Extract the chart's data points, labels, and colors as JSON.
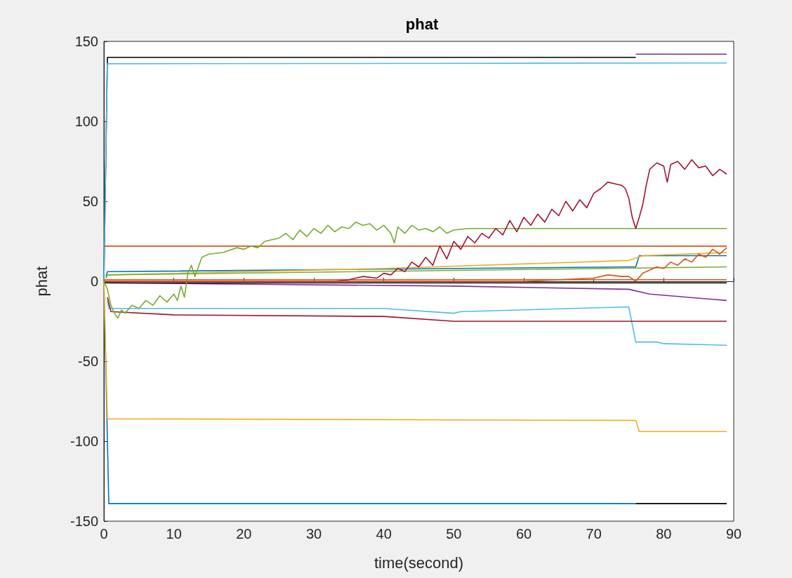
{
  "chart_data": {
    "type": "line",
    "title": "phat",
    "xlabel": "time(second)",
    "ylabel": "phat",
    "xlim": [
      0,
      90
    ],
    "ylim": [
      -150,
      150
    ],
    "xticks": [
      0,
      10,
      20,
      30,
      40,
      50,
      60,
      70,
      80,
      90
    ],
    "yticks": [
      -150,
      -100,
      -50,
      0,
      50,
      100,
      150
    ],
    "marker": "none",
    "series": [
      {
        "color": "#000000",
        "x": [
          0,
          0.5,
          76
        ],
        "values": [
          0,
          140,
          140
        ]
      },
      {
        "color": "#7e2f8e",
        "x": [
          76,
          89
        ],
        "values": [
          142,
          142
        ]
      },
      {
        "color": "#4dbeee",
        "x": [
          0,
          0.5,
          89
        ],
        "values": [
          0,
          136,
          136.5
        ]
      },
      {
        "color": "#0072bd",
        "x": [
          0,
          0.7,
          76
        ],
        "values": [
          0,
          -139,
          -139
        ]
      },
      {
        "color": "#000000",
        "x": [
          76,
          89
        ],
        "values": [
          -139,
          -139
        ]
      },
      {
        "color": "#edb120",
        "x": [
          0,
          0.5,
          76,
          76.5,
          89
        ],
        "values": [
          0,
          -86,
          -87,
          -94,
          -94
        ]
      },
      {
        "color": "#4dbeee",
        "x": [
          0.5,
          0.7,
          40,
          50,
          51,
          75,
          76,
          79,
          80,
          89
        ],
        "values": [
          -12,
          -17,
          -17,
          -20,
          -19,
          -16,
          -38,
          -38,
          -39,
          -40
        ]
      },
      {
        "color": "#a2142f",
        "x": [
          0.5,
          1,
          10,
          40,
          50,
          89
        ],
        "values": [
          -10,
          -19,
          -21,
          -22,
          -25,
          -25
        ]
      },
      {
        "color": "#d95319",
        "x": [
          0,
          89
        ],
        "values": [
          22,
          22
        ]
      },
      {
        "color": "#0072bd",
        "x": [
          0.3,
          0.5,
          50,
          75,
          76,
          76.5,
          89
        ],
        "values": [
          3,
          6,
          8,
          9,
          9,
          16,
          16
        ]
      },
      {
        "color": "#edb120",
        "x": [
          0.3,
          0.5,
          40,
          75,
          77,
          89
        ],
        "values": [
          2,
          4,
          8,
          13,
          16,
          18
        ]
      },
      {
        "color": "#77ac30",
        "x": [
          0.3,
          0.5,
          89
        ],
        "values": [
          2,
          4,
          9
        ]
      },
      {
        "color": "#7e2f8e",
        "x": [
          0,
          50,
          75,
          78,
          89
        ],
        "values": [
          -1,
          -3,
          -5,
          -8,
          -12
        ]
      },
      {
        "color": "#d95319",
        "x": [
          0,
          89
        ],
        "values": [
          1,
          1
        ]
      },
      {
        "color": "#000000",
        "x": [
          0,
          89
        ],
        "values": [
          -1,
          -1
        ]
      },
      {
        "color": "#77ac30",
        "x": [
          0,
          0.5,
          1,
          1.5,
          2,
          2.5,
          3,
          4,
          5,
          6,
          7,
          8,
          9,
          10,
          10.5,
          11,
          11.5,
          12,
          12.5,
          13,
          14,
          15,
          17,
          19,
          20,
          21,
          22,
          23,
          25,
          26,
          27,
          28,
          29,
          30,
          31,
          32,
          33,
          34,
          35,
          36,
          37,
          38,
          39,
          40,
          41,
          41.5,
          42,
          43,
          44,
          45,
          46,
          47,
          48,
          49,
          50,
          52,
          60,
          70,
          80,
          89
        ],
        "values": [
          0,
          -5,
          -15,
          -20,
          -23,
          -18,
          -20,
          -15,
          -17,
          -12,
          -15,
          -9,
          -13,
          -8,
          -12,
          -3,
          -10,
          5,
          10,
          3,
          15,
          17,
          18,
          21,
          20,
          22,
          21,
          25,
          27,
          30,
          26,
          32,
          28,
          33,
          30,
          35,
          31,
          34,
          33,
          37,
          35,
          36,
          32,
          35,
          30,
          24,
          34,
          30,
          35,
          32,
          33,
          31,
          34,
          30,
          32,
          33,
          33,
          33,
          33,
          33
        ]
      },
      {
        "color": "#a2142f",
        "x": [
          0,
          10,
          20,
          30,
          33,
          35,
          37,
          39,
          40,
          41,
          42,
          43,
          44,
          45,
          46,
          47,
          48,
          49,
          50,
          51,
          52,
          53,
          54,
          55,
          56,
          57,
          58,
          59,
          60,
          61,
          62,
          63,
          64,
          65,
          66,
          67,
          68,
          69,
          70,
          71,
          72,
          73,
          74,
          74.5,
          75,
          75.5,
          76,
          76.5,
          77,
          77.5,
          78,
          79,
          80,
          80.5,
          81,
          82,
          83,
          84,
          85,
          86,
          87,
          88,
          89
        ],
        "values": [
          0,
          0,
          0,
          0,
          0,
          1,
          3,
          2,
          5,
          4,
          8,
          6,
          12,
          9,
          15,
          10,
          22,
          14,
          25,
          20,
          28,
          24,
          30,
          27,
          33,
          29,
          38,
          31,
          40,
          35,
          42,
          37,
          45,
          41,
          50,
          44,
          51,
          46,
          55,
          58,
          62,
          61,
          60,
          58,
          52,
          40,
          33,
          40,
          48,
          60,
          70,
          74,
          72,
          62,
          73,
          75,
          70,
          76,
          71,
          72,
          66,
          70,
          67
        ]
      },
      {
        "color": "#d95319",
        "x": [
          0,
          60,
          65,
          70,
          72,
          74,
          75,
          76,
          77,
          78,
          79,
          80,
          81,
          82,
          83,
          84,
          85,
          86,
          87,
          88,
          89
        ],
        "values": [
          0,
          0,
          1,
          2,
          4,
          3,
          3,
          0,
          5,
          7,
          9,
          8,
          12,
          10,
          14,
          12,
          17,
          15,
          20,
          17,
          21
        ]
      }
    ]
  }
}
